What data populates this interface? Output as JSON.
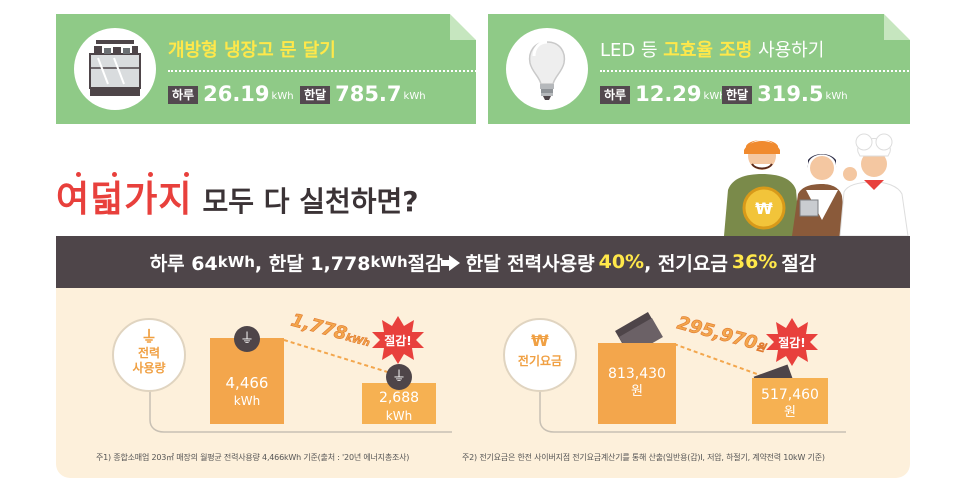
{
  "tips": [
    {
      "title_hl": "개방형 냉장고 문 달기",
      "day_label": "하루",
      "day_value": "26.19",
      "day_unit": "kWh",
      "month_label": "한달",
      "month_value": "785.7",
      "month_unit": "kWh",
      "icon": "refrigerator-icon"
    },
    {
      "title_pre": "LED 등 ",
      "title_hl": "고효율 조명",
      "title_post": " 사용하기",
      "day_label": "하루",
      "day_value": "12.29",
      "day_unit": "kWh",
      "month_label": "한달",
      "month_value": "319.5",
      "month_unit": "kWh",
      "icon": "light-bulb-icon"
    }
  ],
  "headline": {
    "red": "여덟가지",
    "dark": "모두 다 실천하면?"
  },
  "summary": {
    "p1": "하루 64",
    "u1": "kWh",
    "p2": ", 한달 1,778",
    "u2": "kWh",
    "p3": " 절감",
    "p4": "한달 전력사용량",
    "pct1": "40%",
    "p5": ", 전기요금",
    "pct2": "36%",
    "p6": "절감"
  },
  "power": {
    "label1": "전력",
    "label2": "사용량",
    "before_value": "4,466",
    "before_unit": "kWh",
    "after_value": "2,688",
    "after_unit": "kWh",
    "saving_value": "1,778",
    "saving_unit": "kWh",
    "burst": "절감!",
    "icon": "plug-icon"
  },
  "cost": {
    "label": "전기요금",
    "symbol": "₩",
    "before_value": "813,430",
    "before_unit": "원",
    "after_value": "517,460",
    "after_unit": "원",
    "saving_value": "295,970",
    "saving_unit": "원",
    "burst": "절감!"
  },
  "notes": {
    "n1": "주1) 종합소매업 203㎡ 매장의 월평균 전력사용량 4,466kWh 기준(출처 : '20년 에너지총조사)",
    "n2": "주2) 전기요금은 한전 사이버지점 전기요금계산기를 통해 산출(일반용(갑)Ⅰ, 저압, 하절기, 계약전력 10kW 기준)"
  },
  "colors": {
    "green": "#8fca87",
    "yellow": "#ffe84a",
    "red": "#e8403c",
    "dark": "#4e4549",
    "orange": "#f3a64c",
    "cream": "#fdf0db"
  }
}
